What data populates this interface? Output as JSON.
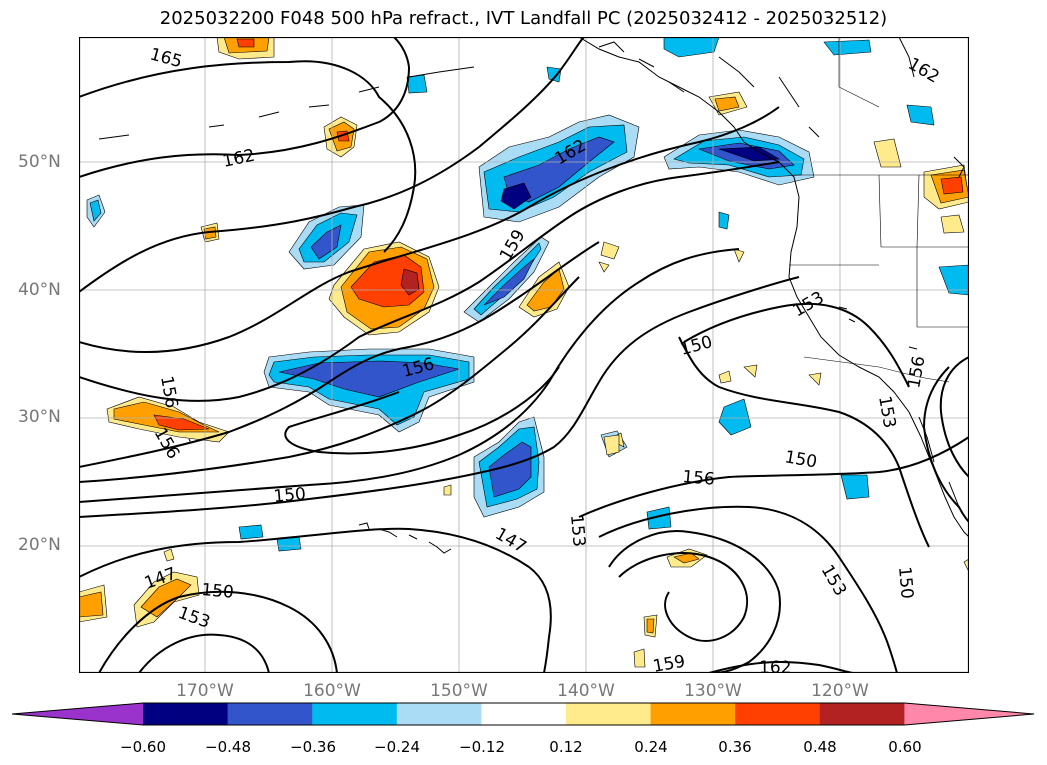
{
  "title": "2025032200 F048 500 hPa refract., IVT Landfall PC (2025032412 - 2025032512)",
  "lat_labels": [
    "50°N",
    "40°N",
    "30°N",
    "20°N"
  ],
  "lon_labels": [
    "170°W",
    "160°W",
    "150°W",
    "140°W",
    "130°W",
    "120°W"
  ],
  "contour_labels": [
    "165",
    "162",
    "162",
    "162",
    "159",
    "156",
    "156",
    "156",
    "150",
    "147",
    "147",
    "153",
    "150",
    "153",
    "153",
    "156",
    "150",
    "150",
    "153",
    "150",
    "156",
    "153",
    "159",
    "162"
  ],
  "colorbar": {
    "ticks": [
      "−0.60",
      "−0.48",
      "−0.36",
      "−0.24",
      "−0.12",
      "0.12",
      "0.24",
      "0.36",
      "0.48",
      "0.60"
    ],
    "colors": [
      "#9933cc",
      "#000080",
      "#3355cc",
      "#00bbf0",
      "#aadcf5",
      "#ffffff",
      "#ffea8c",
      "#ffa000",
      "#ff4000",
      "#b22222",
      "#ff88aa"
    ]
  },
  "field_colors": {
    "neg_strong": "#000080",
    "neg_mid": "#3355cc",
    "neg_light": "#00bbf0",
    "neg_pale": "#aadcf5",
    "pos_pale": "#ffea8c",
    "pos_light": "#ffa000",
    "pos_mid": "#ff4000",
    "pos_strong": "#b22222"
  }
}
